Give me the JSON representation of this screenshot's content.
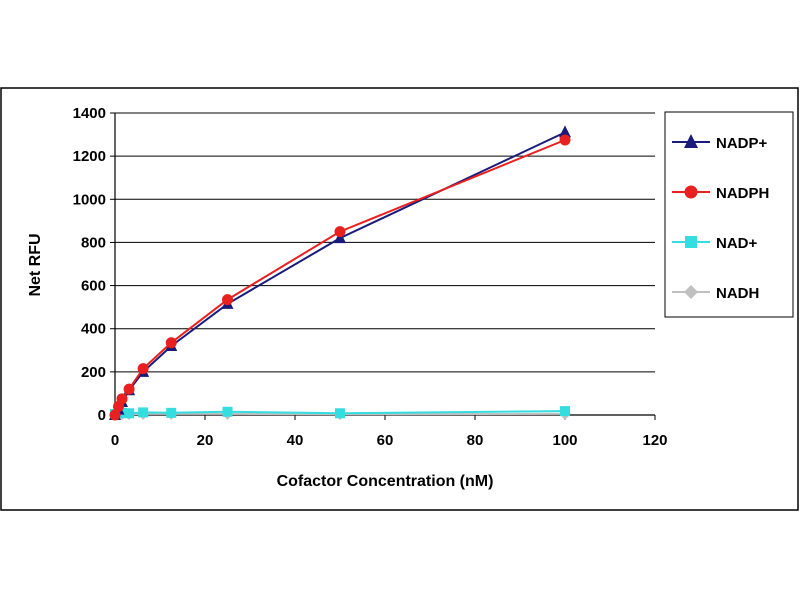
{
  "chart_data": {
    "type": "line",
    "title": "",
    "xlabel": "Cofactor Concentration (nM)",
    "ylabel": "Net RFU",
    "xlim": [
      0,
      120
    ],
    "ylim": [
      0,
      1400
    ],
    "x_ticks": [
      0,
      20,
      40,
      60,
      80,
      100,
      120
    ],
    "y_ticks": [
      0,
      200,
      400,
      600,
      800,
      1000,
      1200,
      1400
    ],
    "grid": "horizontal",
    "legend_position": "right",
    "series": [
      {
        "name": "NADP+",
        "color": "#1a1a7a",
        "marker": "triangle",
        "x": [
          0,
          0.78,
          1.56,
          3.13,
          6.25,
          12.5,
          25,
          50,
          100
        ],
        "y": [
          0,
          25,
          60,
          115,
          200,
          320,
          515,
          820,
          1310
        ]
      },
      {
        "name": "NADPH",
        "color": "#e82020",
        "marker": "circle",
        "x": [
          0,
          0.78,
          1.56,
          3.13,
          6.25,
          12.5,
          25,
          50,
          100
        ],
        "y": [
          0,
          40,
          75,
          120,
          215,
          335,
          535,
          850,
          1275
        ]
      },
      {
        "name": "NAD+",
        "color": "#33dde0",
        "marker": "square",
        "x": [
          0,
          0.78,
          1.56,
          3.13,
          6.25,
          12.5,
          25,
          50,
          100
        ],
        "y": [
          5,
          8,
          10,
          8,
          12,
          10,
          15,
          8,
          18
        ]
      },
      {
        "name": "NADH",
        "color": "#c0c0c0",
        "marker": "diamond",
        "x": [
          0,
          0.78,
          1.56,
          3.13,
          6.25,
          12.5,
          25,
          50,
          100
        ],
        "y": [
          2,
          3,
          4,
          4,
          5,
          5,
          5,
          4,
          5
        ]
      }
    ]
  }
}
